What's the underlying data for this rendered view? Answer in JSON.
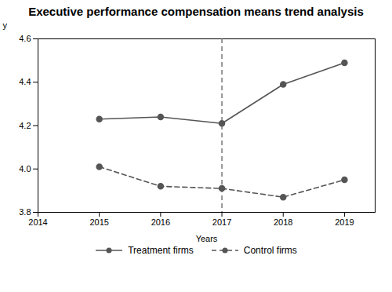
{
  "chart_data": {
    "type": "line",
    "title": "Executive performance compensation means trend analysis",
    "x_label": "Years",
    "y_label": "y",
    "x": [
      2015,
      2016,
      2017,
      2018,
      2019
    ],
    "series": [
      {
        "name": "Treatment firms",
        "color": "#555555",
        "line_style": "solid",
        "marker": "circle",
        "values": [
          4.23,
          4.24,
          4.21,
          4.39,
          4.49
        ]
      },
      {
        "name": "Control firms",
        "color": "#555555",
        "line_style": "dashed",
        "marker": "circle",
        "values": [
          4.01,
          3.92,
          3.91,
          3.87,
          3.95
        ]
      }
    ],
    "vline_x": 2017,
    "vline_color": "#555555",
    "xlim": [
      2014,
      2019.5
    ],
    "ylim": [
      3.8,
      4.6
    ],
    "xticks": [
      2014,
      2015,
      2016,
      2017,
      2018,
      2019
    ],
    "yticks": [
      3.8,
      {
        "value": 4.0,
        "label": "4.0"
      },
      4.2,
      4.4,
      4.6
    ],
    "grid": false,
    "legend": "bottom"
  }
}
